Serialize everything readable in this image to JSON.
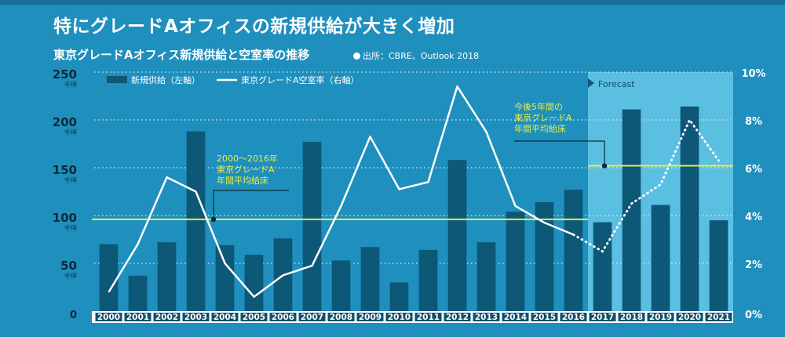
{
  "header": {
    "title": "特にグレードAオフィスの新規供給が大きく増加",
    "subtitle": "東京グレードAオフィス新規供給と空室率の推移",
    "source": "出所：CBRE、Outlook 2018"
  },
  "colors": {
    "background": "#1f8fbd",
    "bar": "#0d5777",
    "forecast_bg": "#5bbfe2",
    "line": "#ffffff",
    "avg_line": "#e6ef4a",
    "avg_text": "#e6ef4a"
  },
  "chart_data": {
    "type": "bar",
    "title": "東京グレードAオフィス新規供給と空室率の推移",
    "categories": [
      "2000",
      "2001",
      "2002",
      "2003",
      "2004",
      "2005",
      "2006",
      "2007",
      "2008",
      "2009",
      "2010",
      "2011",
      "2012",
      "2013",
      "2014",
      "2015",
      "2016",
      "2017",
      "2018",
      "2019",
      "2020",
      "2021"
    ],
    "series": [
      {
        "name": "新規供給（左軸）",
        "type": "bar",
        "axis": "left",
        "values": [
          70,
          37,
          72,
          188,
          69,
          59,
          76,
          177,
          53,
          67,
          30,
          64,
          158,
          72,
          104,
          114,
          127,
          93,
          211,
          111,
          214,
          95
        ]
      },
      {
        "name": "東京グレードA空室率（右軸）",
        "type": "line",
        "axis": "right",
        "values": [
          0.8,
          2.8,
          5.6,
          5.0,
          2.0,
          0.6,
          1.5,
          1.9,
          4.4,
          7.3,
          5.1,
          5.4,
          9.4,
          7.5,
          4.4,
          3.7,
          3.2,
          2.5,
          4.5,
          5.3,
          8.0,
          6.3
        ],
        "forecast_from_index": 16
      }
    ],
    "y_left": {
      "min": 0,
      "max": 250,
      "ticks": [
        0,
        50,
        100,
        150,
        200,
        250
      ],
      "tick_labels": [
        "0",
        "50",
        "100",
        "150",
        "200",
        "250"
      ],
      "unit": "千坪"
    },
    "y_right": {
      "min": 0,
      "max": 10,
      "ticks": [
        0,
        2,
        4,
        6,
        8,
        10
      ],
      "tick_labels": [
        "0",
        "2",
        "4",
        "6",
        "8",
        "10"
      ],
      "unit": "%"
    },
    "legend": [
      "新規供給（左軸）",
      "東京グレードA空室率（右軸）"
    ],
    "forecast": {
      "label": "Forecast",
      "from_category": "2017"
    },
    "reference_lines": [
      {
        "value": 96,
        "from": "2000",
        "to": "2016",
        "label_lines": [
          "2000～2016年",
          "東京グレードA",
          "年間平均給床"
        ]
      },
      {
        "value": 152,
        "from": "2017",
        "to": "2021",
        "label_lines": [
          "今後5年間の",
          "東京グレードA",
          "年間平均給床"
        ]
      }
    ]
  }
}
